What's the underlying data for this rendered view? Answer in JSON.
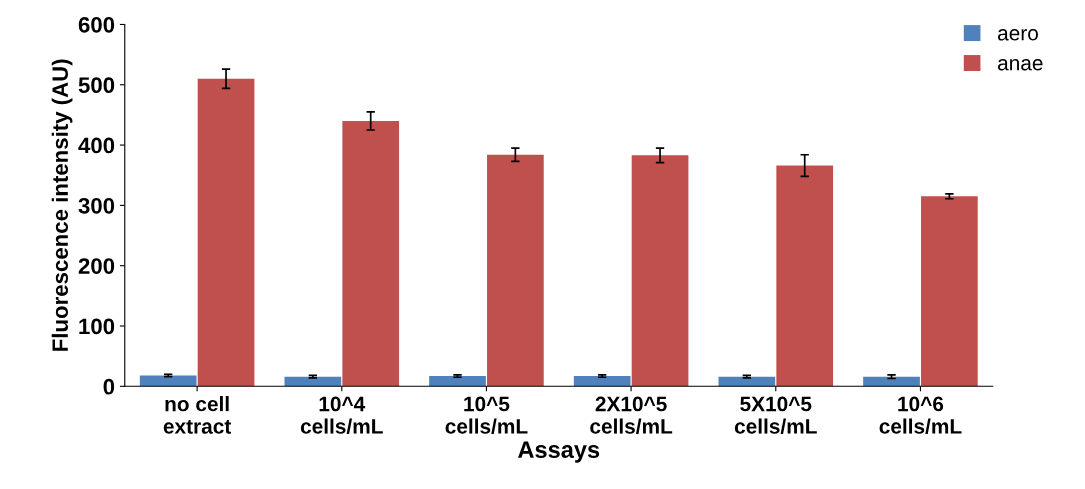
{
  "chart_data": {
    "type": "bar",
    "xlabel": "Assays",
    "ylabel": "Fluorescence intensity (AU)",
    "categories": [
      "no cell\nextract",
      "10^4\ncells/mL",
      "10^5\ncells/mL",
      "2X10^5\ncells/mL",
      "5X10^5\ncells/mL",
      "10^6\ncells/mL"
    ],
    "series": [
      {
        "name": "aero",
        "color": "#4f81bd",
        "values": [
          18,
          16,
          17,
          17,
          16,
          16
        ],
        "errors": [
          2,
          2,
          2,
          2,
          2,
          3
        ]
      },
      {
        "name": "anae",
        "color": "#c0504d",
        "values": [
          510,
          440,
          384,
          383,
          366,
          315
        ],
        "errors": [
          16,
          15,
          11,
          12,
          18,
          4
        ]
      }
    ],
    "ylim": [
      0,
      600
    ],
    "yticks": [
      0,
      100,
      200,
      300,
      400,
      500,
      600
    ],
    "grid": false,
    "legend": "top right"
  }
}
